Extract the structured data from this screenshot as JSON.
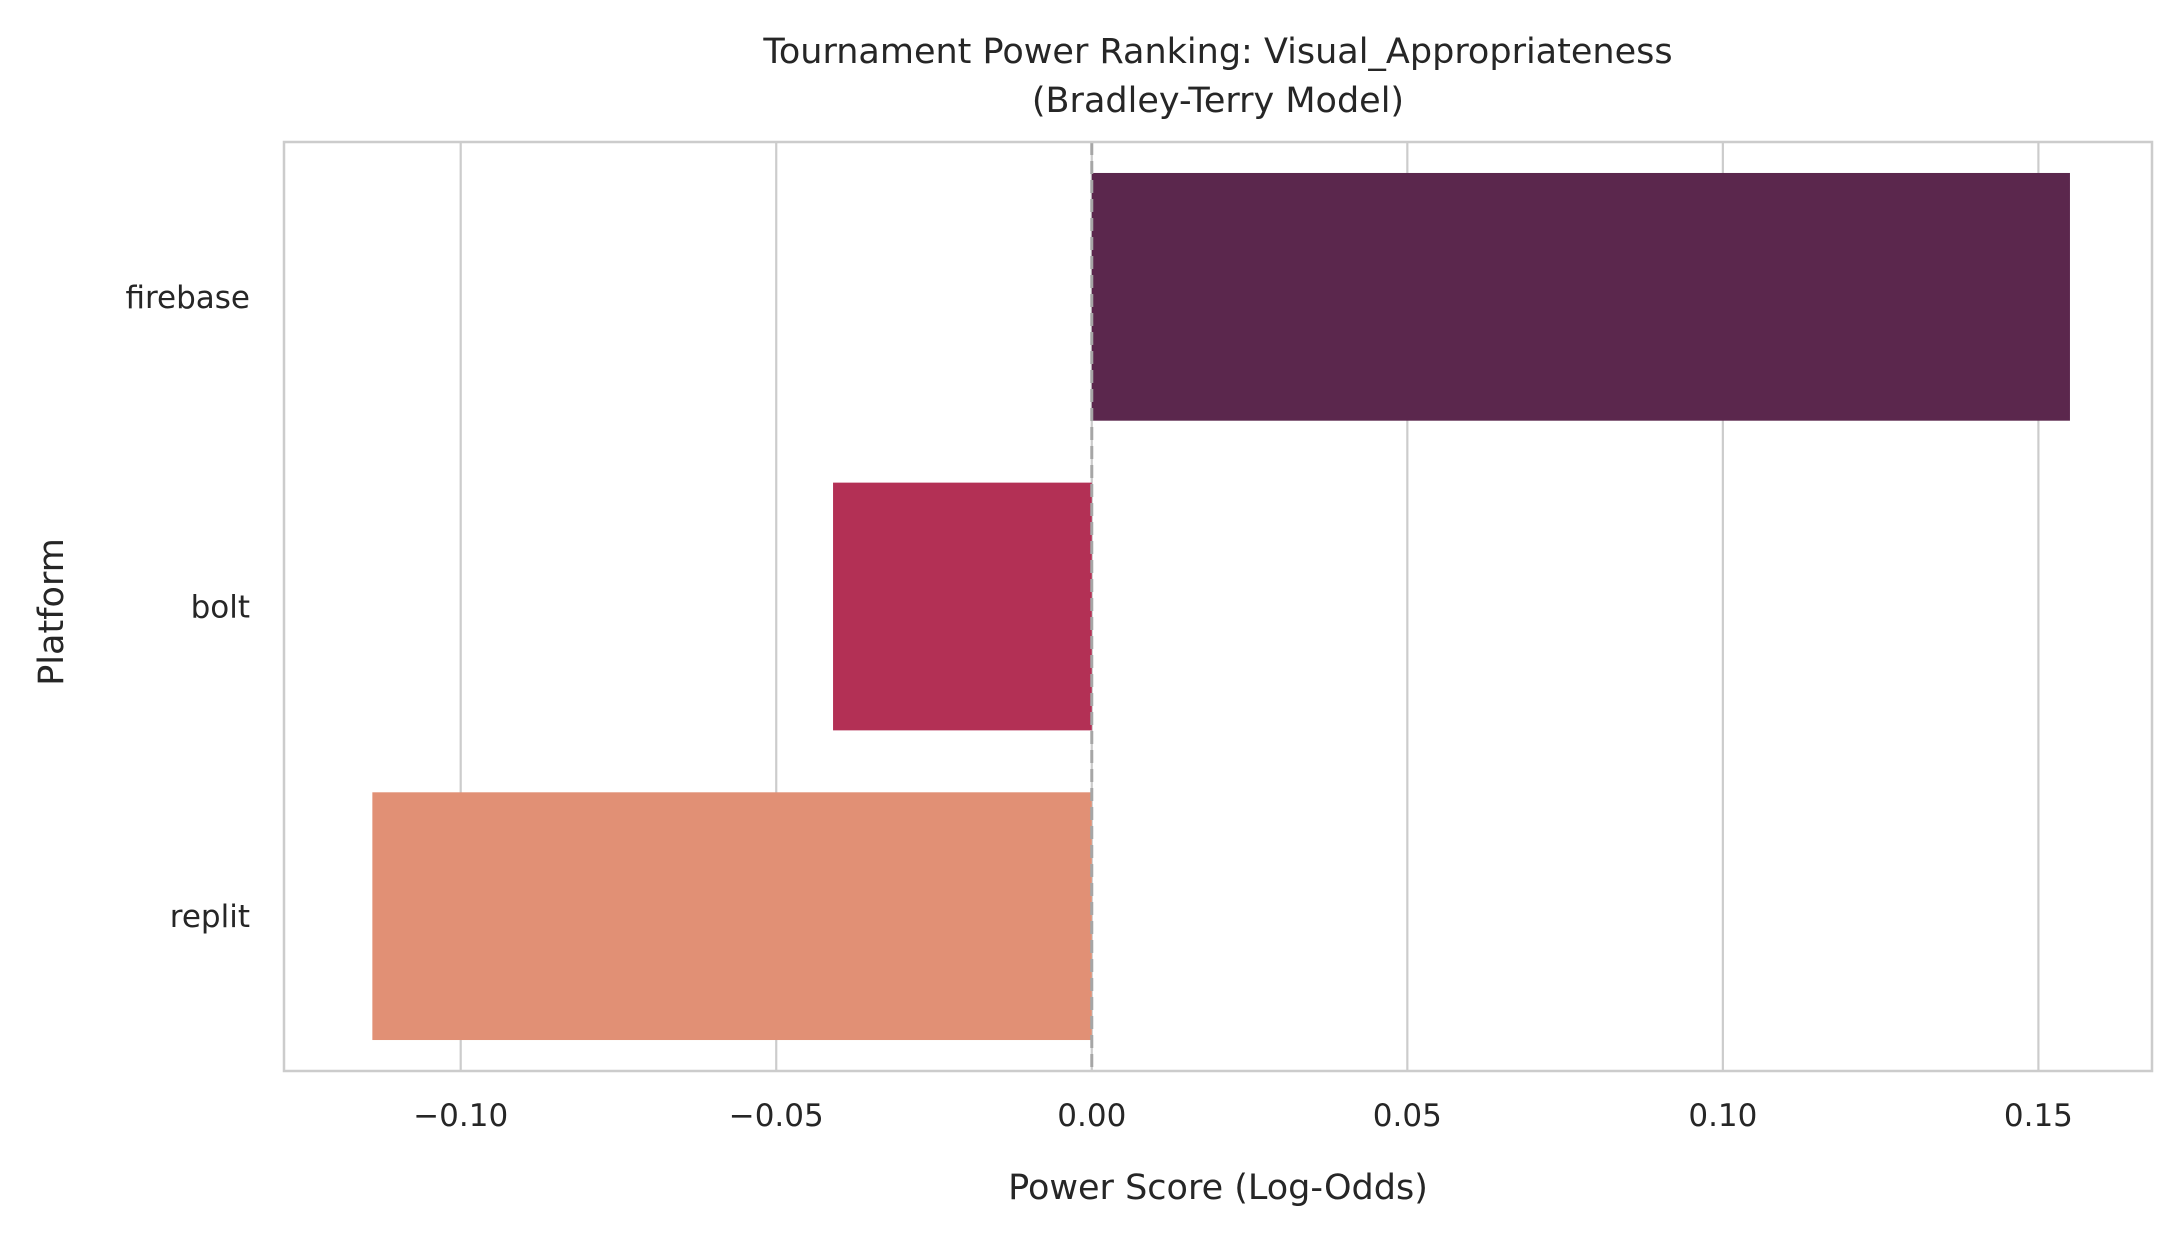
{
  "chart_data": {
    "type": "bar",
    "orientation": "horizontal",
    "title": "Tournament Power Ranking: Visual_Appropriateness",
    "subtitle": "(Bradley-Terry Model)",
    "xlabel": "Power Score (Log-Odds)",
    "ylabel": "Platform",
    "categories": [
      "firebase",
      "bolt",
      "replit"
    ],
    "values": [
      0.155,
      -0.041,
      -0.114
    ],
    "colors": [
      "#5b274d",
      "#b33055",
      "#e19075"
    ],
    "xlim": [
      -0.128,
      0.168
    ],
    "xticks": [
      -0.1,
      -0.05,
      0.0,
      0.05,
      0.1,
      0.15
    ],
    "xtick_labels": [
      "−0.10",
      "−0.05",
      "0.00",
      "0.05",
      "0.10",
      "0.15"
    ],
    "grid": "x",
    "zero_line": true,
    "legend": "none"
  }
}
